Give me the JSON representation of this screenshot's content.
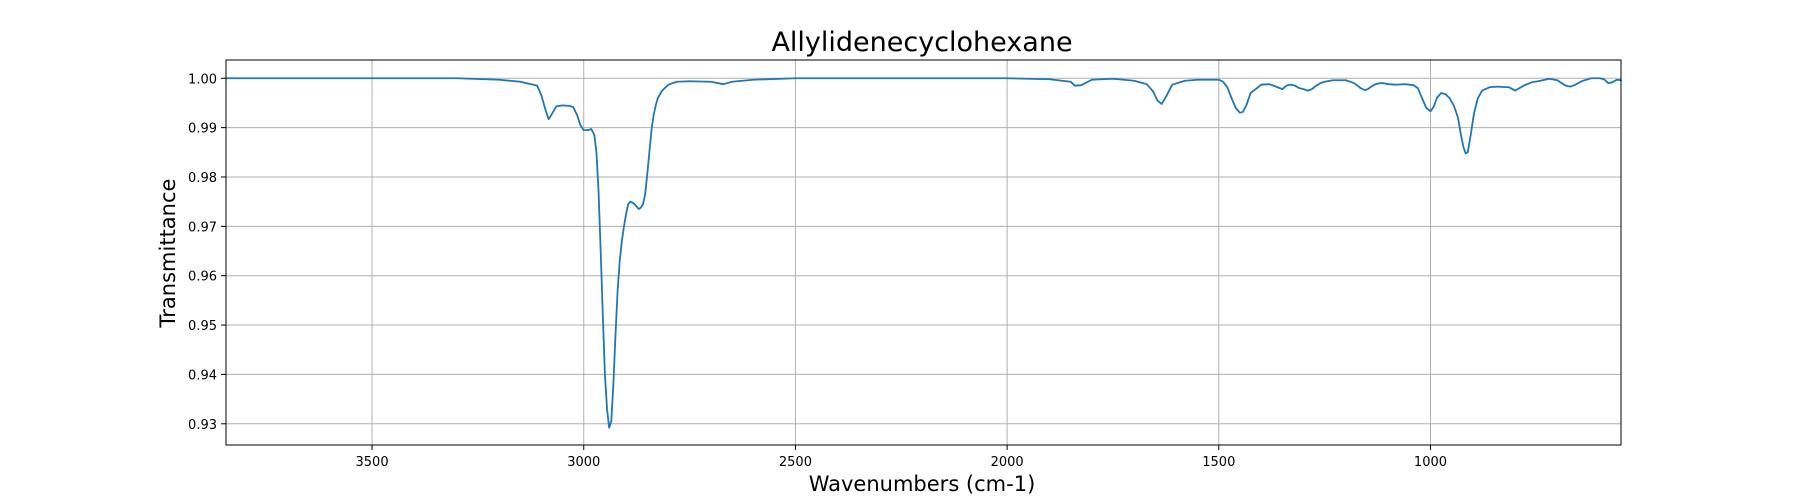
{
  "chart_data": {
    "type": "line",
    "title": "Allylidenecyclohexane",
    "xlabel": "Wavenumbers (cm-1)",
    "ylabel": "Transmittance",
    "xlim": [
      3845,
      550
    ],
    "ylim": [
      0.9257,
      1.0037
    ],
    "x_reversed": true,
    "grid": true,
    "x_ticks": [
      3500,
      3000,
      2500,
      2000,
      1500,
      1000
    ],
    "x_tick_labels": [
      "3500",
      "3000",
      "2500",
      "2000",
      "1500",
      "1000"
    ],
    "y_ticks": [
      0.93,
      0.94,
      0.95,
      0.96,
      0.97,
      0.98,
      0.99,
      1.0
    ],
    "y_tick_labels": [
      "0.93",
      "0.94",
      "0.95",
      "0.96",
      "0.97",
      "0.98",
      "0.99",
      "1.00"
    ],
    "series": [
      {
        "color": "#1f77b4",
        "x": [
          3845,
          3700,
          3500,
          3300,
          3200,
          3150,
          3110,
          3100,
          3090,
          3083,
          3075,
          3065,
          3050,
          3035,
          3025,
          3015,
          3008,
          3000,
          2990,
          2982,
          2975,
          2970,
          2965,
          2960,
          2955,
          2950,
          2945,
          2940,
          2935,
          2930,
          2925,
          2920,
          2915,
          2910,
          2905,
          2900,
          2895,
          2890,
          2885,
          2880,
          2875,
          2870,
          2865,
          2860,
          2855,
          2850,
          2845,
          2840,
          2835,
          2830,
          2825,
          2815,
          2800,
          2780,
          2750,
          2700,
          2670,
          2650,
          2600,
          2500,
          2400,
          2300,
          2200,
          2100,
          2000,
          1900,
          1850,
          1840,
          1825,
          1800,
          1750,
          1700,
          1670,
          1655,
          1645,
          1635,
          1625,
          1610,
          1580,
          1550,
          1500,
          1490,
          1480,
          1470,
          1460,
          1450,
          1443,
          1435,
          1425,
          1410,
          1400,
          1380,
          1365,
          1350,
          1340,
          1330,
          1320,
          1310,
          1300,
          1290,
          1280,
          1270,
          1260,
          1250,
          1230,
          1200,
          1180,
          1165,
          1155,
          1148,
          1140,
          1130,
          1120,
          1110,
          1100,
          1080,
          1060,
          1040,
          1030,
          1020,
          1010,
          1000,
          992,
          985,
          975,
          965,
          955,
          945,
          935,
          928,
          922,
          917,
          912,
          905,
          897,
          888,
          878,
          860,
          840,
          825,
          815,
          800,
          780,
          760,
          740,
          720,
          700,
          690,
          680,
          670,
          660,
          640,
          620,
          600,
          590,
          580,
          570,
          560,
          550
        ],
        "y": [
          1.0,
          1.0,
          1.0,
          1.0,
          0.9997,
          0.9993,
          0.9985,
          0.9965,
          0.9935,
          0.9917,
          0.9928,
          0.9943,
          0.9945,
          0.9944,
          0.9942,
          0.9924,
          0.9905,
          0.9895,
          0.9895,
          0.9897,
          0.9885,
          0.985,
          0.977,
          0.965,
          0.952,
          0.94,
          0.933,
          0.9292,
          0.9305,
          0.938,
          0.948,
          0.957,
          0.963,
          0.967,
          0.97,
          0.9725,
          0.9745,
          0.975,
          0.9748,
          0.9745,
          0.974,
          0.9735,
          0.9738,
          0.9745,
          0.9765,
          0.9805,
          0.985,
          0.9895,
          0.9925,
          0.9945,
          0.996,
          0.9975,
          0.9987,
          0.9993,
          0.9994,
          0.9993,
          0.9988,
          0.9993,
          0.9997,
          1.0,
          1.0,
          1.0,
          1.0,
          1.0,
          1.0,
          0.9998,
          0.9993,
          0.9985,
          0.9986,
          0.9997,
          0.9999,
          0.9995,
          0.9988,
          0.9973,
          0.9955,
          0.9948,
          0.9962,
          0.9987,
          0.9995,
          0.9997,
          0.9997,
          0.9993,
          0.9982,
          0.996,
          0.994,
          0.993,
          0.9932,
          0.9945,
          0.997,
          0.998,
          0.9987,
          0.9988,
          0.9983,
          0.9978,
          0.9985,
          0.9987,
          0.9985,
          0.998,
          0.9978,
          0.9975,
          0.9978,
          0.9985,
          0.999,
          0.9993,
          0.9996,
          0.9996,
          0.999,
          0.998,
          0.9976,
          0.9978,
          0.9983,
          0.9988,
          0.999,
          0.999,
          0.9988,
          0.9987,
          0.9988,
          0.9986,
          0.998,
          0.996,
          0.994,
          0.9933,
          0.9943,
          0.996,
          0.997,
          0.9968,
          0.996,
          0.9945,
          0.992,
          0.9885,
          0.986,
          0.9848,
          0.985,
          0.9885,
          0.993,
          0.996,
          0.9975,
          0.9982,
          0.9983,
          0.9982,
          0.9982,
          0.9975,
          0.9985,
          0.9992,
          0.9995,
          0.9999,
          0.9996,
          0.999,
          0.9985,
          0.9983,
          0.9986,
          0.9995,
          1.0,
          1.0,
          0.9998,
          0.999,
          0.9992,
          0.9997,
          0.9996
        ]
      }
    ]
  }
}
